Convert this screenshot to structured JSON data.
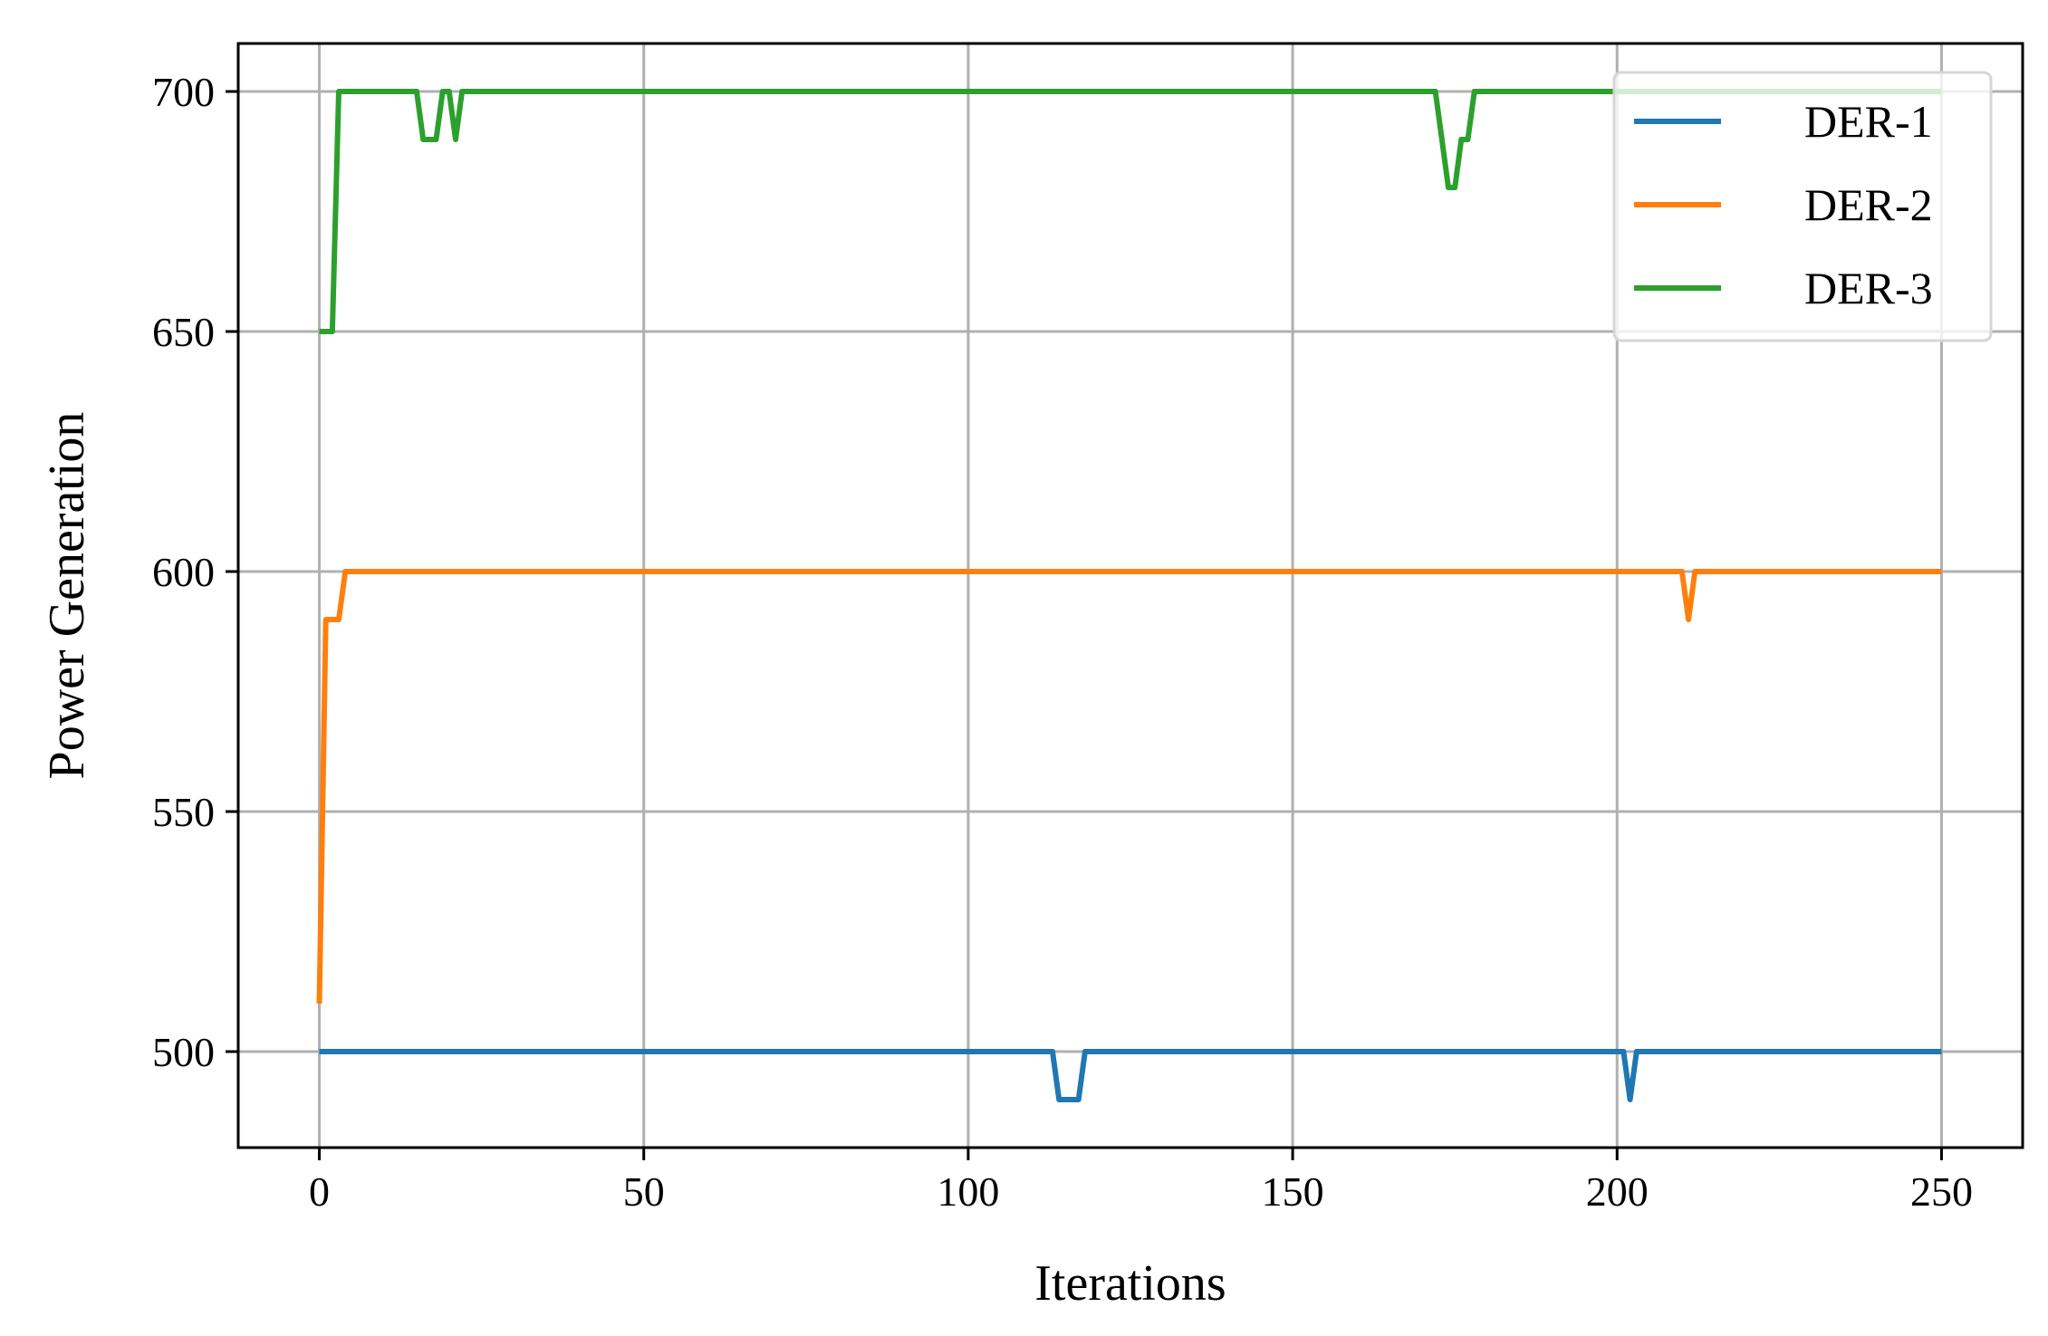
{
  "chart_data": {
    "type": "line",
    "title": "",
    "xlabel": "Iterations",
    "ylabel": "Power Generation",
    "xlim": [
      -12.5,
      262.5
    ],
    "ylim": [
      480,
      710
    ],
    "xticks": [
      0,
      50,
      100,
      150,
      200,
      250
    ],
    "yticks": [
      500,
      550,
      600,
      650,
      700
    ],
    "grid": true,
    "legend_position": "top-right",
    "series": [
      {
        "name": "DER-1",
        "color": "#1f77b4",
        "points": [
          [
            0,
            500
          ],
          [
            113,
            500
          ],
          [
            114,
            490
          ],
          [
            117,
            490
          ],
          [
            118,
            500
          ],
          [
            201,
            500
          ],
          [
            202,
            490
          ],
          [
            203,
            500
          ],
          [
            250,
            500
          ]
        ]
      },
      {
        "name": "DER-2",
        "color": "#ff7f0e",
        "points": [
          [
            0,
            510
          ],
          [
            1,
            590
          ],
          [
            3,
            590
          ],
          [
            4,
            600
          ],
          [
            210,
            600
          ],
          [
            211,
            590
          ],
          [
            212,
            600
          ],
          [
            250,
            600
          ]
        ]
      },
      {
        "name": "DER-3",
        "color": "#2ca02c",
        "points": [
          [
            0,
            650
          ],
          [
            2,
            650
          ],
          [
            3,
            700
          ],
          [
            15,
            700
          ],
          [
            16,
            690
          ],
          [
            18,
            690
          ],
          [
            19,
            700
          ],
          [
            20,
            700
          ],
          [
            21,
            690
          ],
          [
            22,
            700
          ],
          [
            172,
            700
          ],
          [
            174,
            680
          ],
          [
            175,
            680
          ],
          [
            176,
            690
          ],
          [
            177,
            690
          ],
          [
            178,
            700
          ],
          [
            250,
            700
          ]
        ]
      }
    ]
  }
}
